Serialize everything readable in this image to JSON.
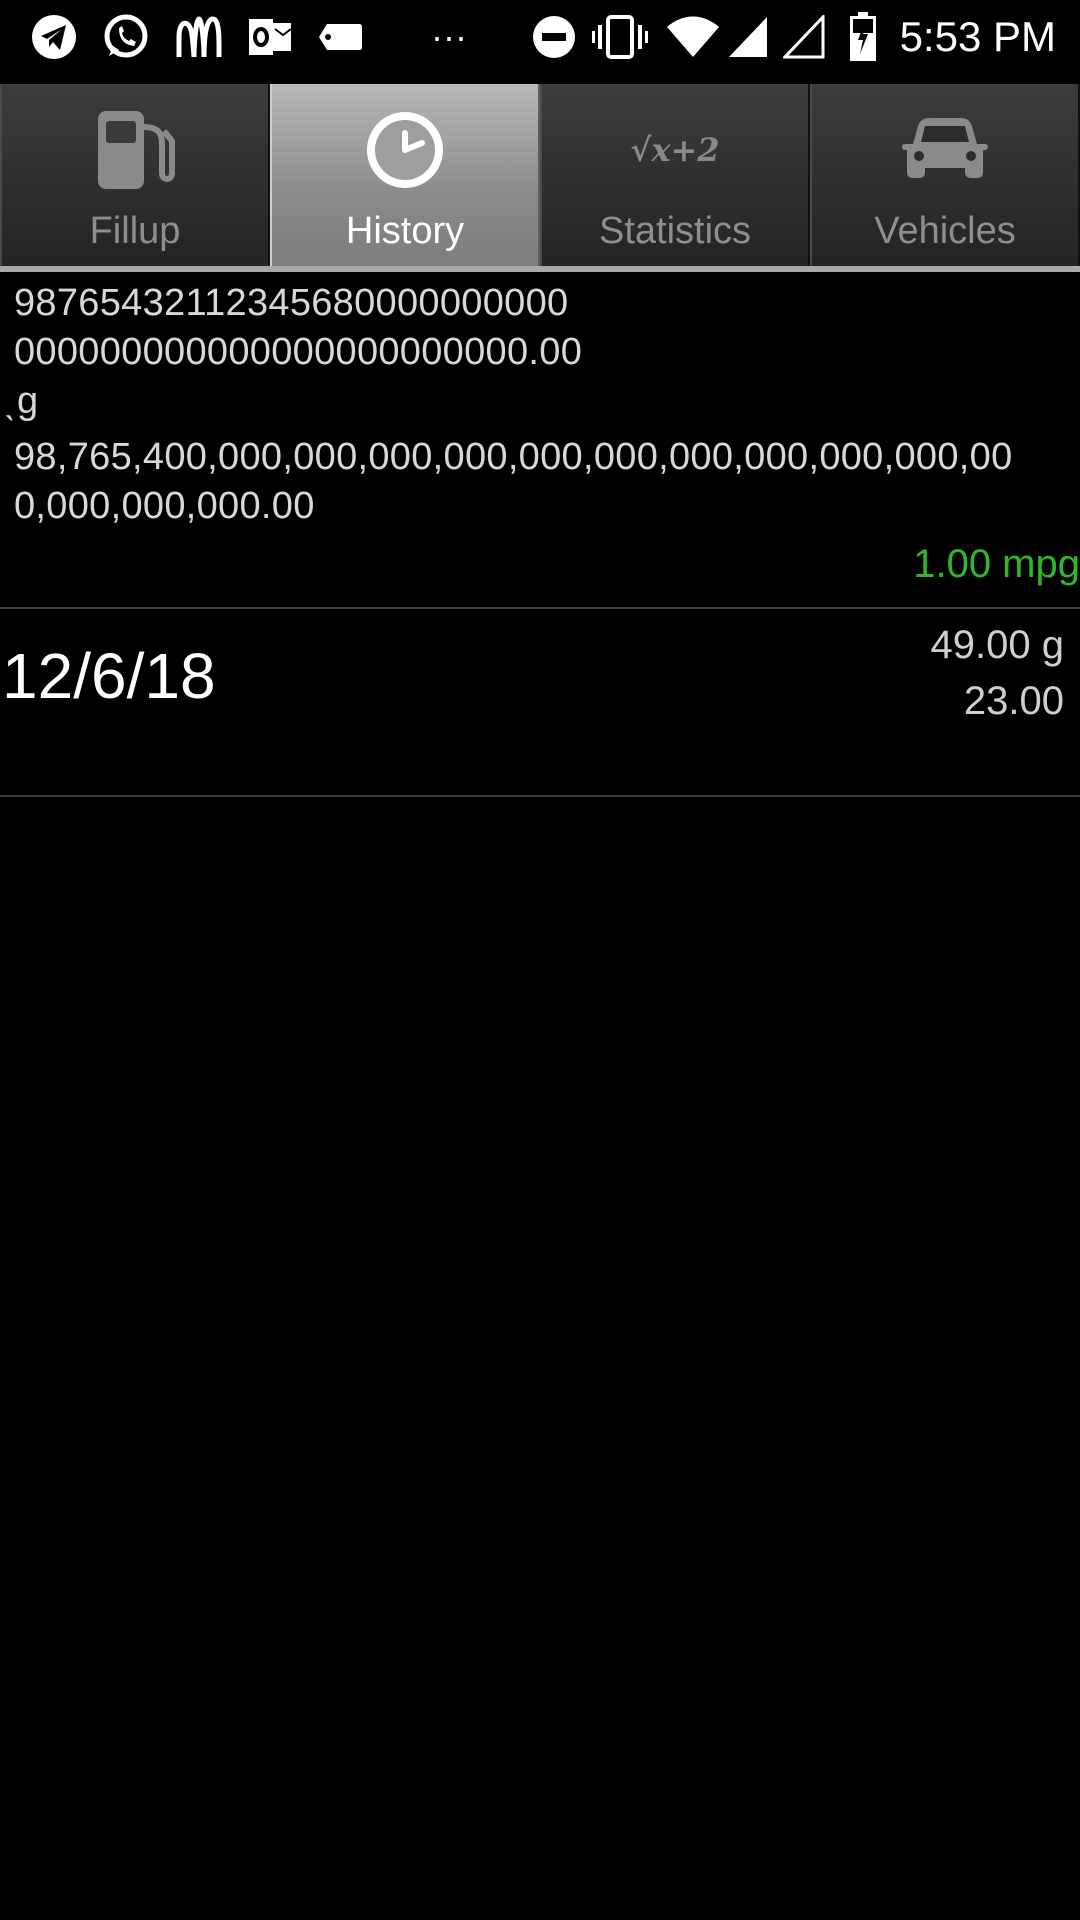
{
  "status_bar": {
    "time": "5:53 PM",
    "icons": [
      "telegram-icon",
      "whatsapp-icon",
      "mcdonalds-icon",
      "outlook-icon",
      "tag-icon",
      "more-dots-icon",
      "do-not-disturb-icon",
      "vibrate-icon",
      "wifi-icon",
      "signal-icon",
      "signal-empty-icon",
      "battery-charging-icon"
    ],
    "more_text": "···"
  },
  "tabs": [
    {
      "label": "Fillup",
      "icon": "fuel-pump-icon",
      "active": false
    },
    {
      "label": "History",
      "icon": "clock-icon",
      "active": true
    },
    {
      "label": "Statistics",
      "icon": "sqrt-formula-icon",
      "active": false,
      "icon_text": "√x+2"
    },
    {
      "label": "Vehicles",
      "icon": "car-icon",
      "active": false
    }
  ],
  "history": {
    "entry1": {
      "line1": "98765432112345680000000000",
      "line2": "000000000000000000000000.00",
      "line3": "ˎg",
      "line4": "98,765,400,000,000,000,000,000,000,000,000,000,000,00",
      "line5": "0,000,000,000.00",
      "mpg": "1.00 mpg"
    },
    "entry2": {
      "date": "12/6/18",
      "gallons": "49.00 g",
      "amount": "23.00"
    }
  },
  "colors": {
    "mpg_green": "#2fb62c",
    "active_tab": "#9a9a9a"
  }
}
